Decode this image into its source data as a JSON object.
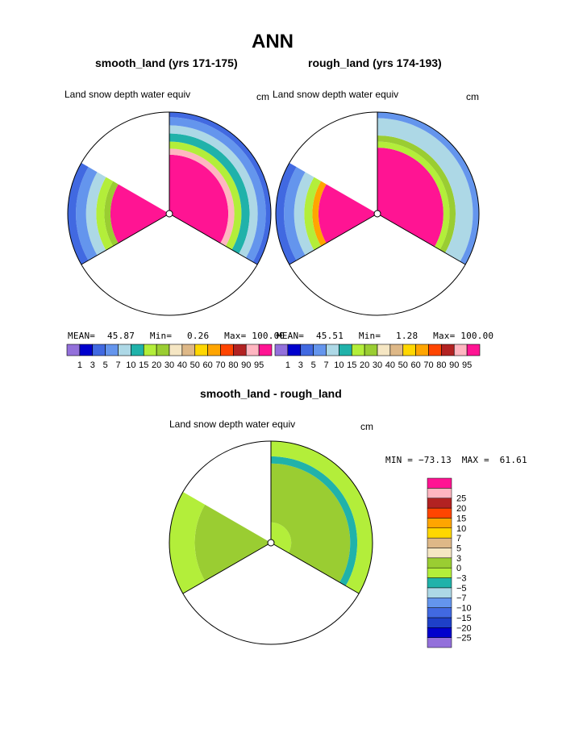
{
  "page": {
    "title": "ANN",
    "panel_left_title": "smooth_land (yrs 171-175)",
    "panel_right_title": "rough_land (yrs 174-193)",
    "diff_title": "smooth_land - rough_land"
  },
  "colors": {
    "abs": [
      "#9370db",
      "#0000cd",
      "#4169e1",
      "#6495ed",
      "#add8e6",
      "#20b2aa",
      "#b3ee3a",
      "#9acd32",
      "#f5e6c3",
      "#deb887",
      "#ffd700",
      "#ffa500",
      "#ff4500",
      "#b22222",
      "#ffb6c1",
      "#ff1493"
    ],
    "diff": [
      "#9370db",
      "#0000cd",
      "#1e40c8",
      "#4169e1",
      "#6495ed",
      "#add8e6",
      "#20b2aa",
      "#b3ee3a",
      "#9acd32",
      "#f5e6c3",
      "#deb887",
      "#ffd700",
      "#ffa500",
      "#ff4500",
      "#b22222",
      "#ffb6c1",
      "#ff1493"
    ]
  },
  "chart_data": [
    {
      "type": "heatmap",
      "projection": "polar",
      "title": "smooth_land (yrs 171-175)",
      "field": "Land snow depth water equiv",
      "units": "cm",
      "stats": {
        "mean_label": "MEAN=",
        "mean": "45.87",
        "min_label": "Min=",
        "min": "0.26",
        "max_label": "Max=",
        "max": "100.00"
      },
      "levels": [
        "1",
        "3",
        "5",
        "7",
        "10",
        "15",
        "20",
        "30",
        "40",
        "50",
        "60",
        "70",
        "80",
        "90",
        "95"
      ],
      "sectors": [
        {
          "from_deg": 0,
          "to_deg": 120,
          "rings": [
            {
              "r0": 0.0,
              "r1": 0.58,
              "value": 98
            },
            {
              "r0": 0.58,
              "r1": 0.64,
              "value": 92
            },
            {
              "r0": 0.64,
              "r1": 0.71,
              "value": 15
            },
            {
              "r0": 0.71,
              "r1": 0.79,
              "value": 12
            },
            {
              "r0": 0.79,
              "r1": 0.87,
              "value": 8
            },
            {
              "r0": 0.87,
              "r1": 0.95,
              "value": 6
            },
            {
              "r0": 0.95,
              "r1": 1.0,
              "value": 4
            }
          ]
        },
        {
          "from_deg": 240,
          "to_deg": 300,
          "rings": [
            {
              "r0": 0.0,
              "r1": 0.58,
              "value": 98
            },
            {
              "r0": 0.58,
              "r1": 0.64,
              "value": 20
            },
            {
              "r0": 0.64,
              "r1": 0.72,
              "value": 15
            },
            {
              "r0": 0.72,
              "r1": 0.82,
              "value": 8
            },
            {
              "r0": 0.82,
              "r1": 0.92,
              "value": 6
            },
            {
              "r0": 0.92,
              "r1": 1.0,
              "value": 4
            }
          ]
        }
      ]
    },
    {
      "type": "heatmap",
      "projection": "polar",
      "title": "rough_land (yrs 174-193)",
      "field": "Land snow depth water equiv",
      "units": "cm",
      "stats": {
        "mean_label": "MEAN=",
        "mean": "45.51",
        "min_label": "Min=",
        "min": "1.28",
        "max_label": "Max=",
        "max": "100.00"
      },
      "levels": [
        "1",
        "3",
        "5",
        "7",
        "10",
        "15",
        "20",
        "30",
        "40",
        "50",
        "60",
        "70",
        "80",
        "90",
        "95"
      ],
      "sectors": [
        {
          "from_deg": 0,
          "to_deg": 120,
          "rings": [
            {
              "r0": 0.0,
              "r1": 0.65,
              "value": 98
            },
            {
              "r0": 0.65,
              "r1": 0.71,
              "value": 15
            },
            {
              "r0": 0.71,
              "r1": 0.77,
              "value": 25
            },
            {
              "r0": 0.77,
              "r1": 0.94,
              "value": 8
            },
            {
              "r0": 0.94,
              "r1": 1.0,
              "value": 6
            }
          ]
        },
        {
          "from_deg": 240,
          "to_deg": 300,
          "rings": [
            {
              "r0": 0.0,
              "r1": 0.58,
              "value": 98
            },
            {
              "r0": 0.58,
              "r1": 0.64,
              "value": 65
            },
            {
              "r0": 0.64,
              "r1": 0.72,
              "value": 15
            },
            {
              "r0": 0.72,
              "r1": 0.82,
              "value": 8
            },
            {
              "r0": 0.82,
              "r1": 0.92,
              "value": 6
            },
            {
              "r0": 0.92,
              "r1": 1.0,
              "value": 4
            }
          ]
        }
      ]
    },
    {
      "type": "heatmap",
      "projection": "polar",
      "title": "smooth_land - rough_land",
      "field": "Land snow depth water equiv",
      "units": "cm",
      "stats": {
        "min_label": "MIN =",
        "min": "−73.13",
        "max_label": "MAX =",
        "max": "61.61"
      },
      "levels": [
        "−25",
        "−20",
        "−15",
        "−10",
        "−7",
        "−5",
        "−3",
        "0",
        "3",
        "5",
        "7",
        "10",
        "15",
        "20",
        "25"
      ],
      "sectors": [
        {
          "from_deg": 0,
          "to_deg": 120,
          "rings": [
            {
              "r0": 0.0,
              "r1": 0.2,
              "value": -2
            },
            {
              "r0": 0.2,
              "r1": 0.78,
              "value": 1
            },
            {
              "r0": 0.78,
              "r1": 0.85,
              "value": -4
            },
            {
              "r0": 0.85,
              "r1": 1.0,
              "value": -2
            }
          ]
        },
        {
          "from_deg": 240,
          "to_deg": 300,
          "rings": [
            {
              "r0": 0.0,
              "r1": 0.75,
              "value": 1
            },
            {
              "r0": 0.75,
              "r1": 1.0,
              "value": -2
            }
          ]
        }
      ]
    }
  ]
}
